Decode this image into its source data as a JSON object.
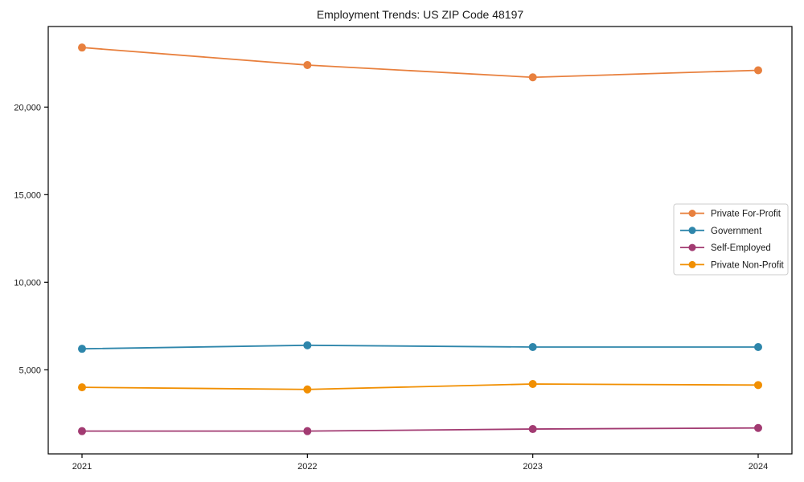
{
  "chart_data": {
    "type": "line",
    "title": "Employment Trends: US ZIP Code 48197",
    "xlabel": "",
    "ylabel": "",
    "categories": [
      "2021",
      "2022",
      "2023",
      "2024"
    ],
    "series": [
      {
        "name": "Private For-Profit",
        "color": "#E8803E",
        "values": [
          23400,
          22400,
          21700,
          22100
        ]
      },
      {
        "name": "Government",
        "color": "#2E86AB",
        "values": [
          6200,
          6400,
          6300,
          6300
        ]
      },
      {
        "name": "Self-Employed",
        "color": "#A23B72",
        "values": [
          1500,
          1500,
          1620,
          1680
        ]
      },
      {
        "name": "Private Non-Profit",
        "color": "#F18F01",
        "values": [
          4000,
          3880,
          4190,
          4130
        ]
      }
    ],
    "ylim": [
      200,
      24600
    ],
    "yticks": [
      5000,
      10000,
      15000,
      20000
    ],
    "ytick_labels": [
      "5,000",
      "10,000",
      "15,000",
      "20,000"
    ],
    "grid": false,
    "marker": "circle",
    "legend": {
      "position": "right-center",
      "border": true,
      "border_color": "#cccccc",
      "background": "#ffffff"
    },
    "axis_color": "#000000",
    "text_color": "#1a1a1a"
  }
}
